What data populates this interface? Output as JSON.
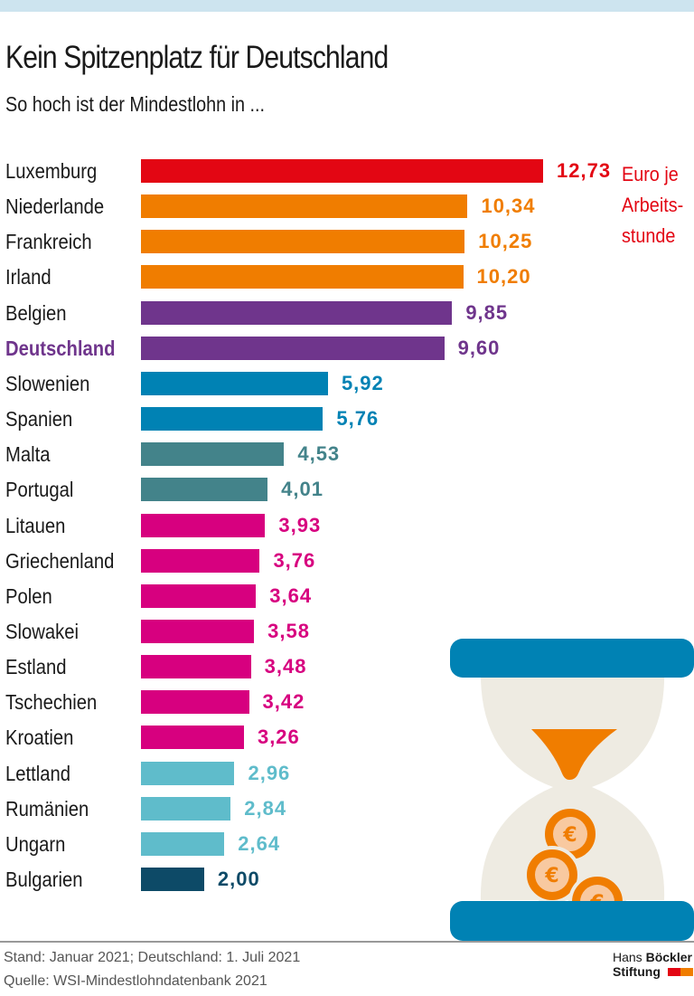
{
  "title": "Kein Spitzenplatz für Deutschland",
  "subtitle": "So hoch ist der Mindestlohn in ...",
  "footer": {
    "stand": "Stand: Januar 2021; Deutschland: 1. Juli 2021",
    "quelle": "Quelle: WSI-Mindestlohndatenbank 2021"
  },
  "logo": {
    "line1a": "Hans ",
    "line1b": "Böckler",
    "line2": "Stiftung",
    "colors": [
      "#e30613",
      "#f07d00"
    ]
  },
  "illustration": "hourglass-with-euro-coins-icon",
  "chart_data": {
    "type": "bar",
    "orientation": "horizontal",
    "unit_label": [
      "Euro je",
      "Arbeits-",
      "stunde"
    ],
    "highlight": "Deutschland",
    "categories": [
      "Luxemburg",
      "Niederlande",
      "Frankreich",
      "Irland",
      "Belgien",
      "Deutschland",
      "Slowenien",
      "Spanien",
      "Malta",
      "Portugal",
      "Litauen",
      "Griechenland",
      "Polen",
      "Slowakei",
      "Estland",
      "Tschechien",
      "Kroatien",
      "Lettland",
      "Rumänien",
      "Ungarn",
      "Bulgarien"
    ],
    "values": [
      12.73,
      10.34,
      10.25,
      10.2,
      9.85,
      9.6,
      5.92,
      5.76,
      4.53,
      4.01,
      3.93,
      3.76,
      3.64,
      3.58,
      3.48,
      3.42,
      3.26,
      2.96,
      2.84,
      2.64,
      2.0
    ],
    "value_labels": [
      "12,73",
      "10,34",
      "10,25",
      "10,20",
      "9,85",
      "9,60",
      "5,92",
      "5,76",
      "4,53",
      "4,01",
      "3,93",
      "3,76",
      "3,64",
      "3,58",
      "3,48",
      "3,42",
      "3,26",
      "2,96",
      "2,84",
      "2,64",
      "2,00"
    ],
    "colors": [
      "#e30613",
      "#f07d00",
      "#f07d00",
      "#f07d00",
      "#6f358c",
      "#6f358c",
      "#0082b4",
      "#0082b4",
      "#43838a",
      "#43838a",
      "#d7007f",
      "#d7007f",
      "#d7007f",
      "#d7007f",
      "#d7007f",
      "#d7007f",
      "#d7007f",
      "#5fbccb",
      "#5fbccb",
      "#5fbccb",
      "#0d4a67"
    ]
  }
}
